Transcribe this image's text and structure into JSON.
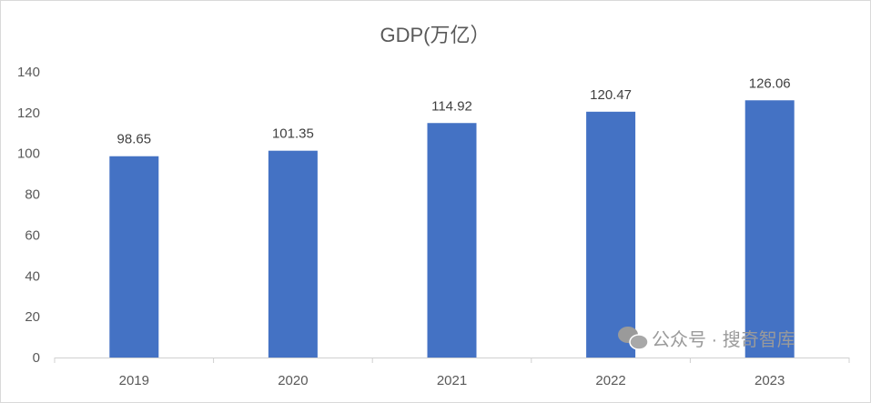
{
  "chart_data": {
    "type": "bar",
    "title": "GDP(万亿）",
    "categories": [
      "2019",
      "2020",
      "2021",
      "2022",
      "2023"
    ],
    "values": [
      98.65,
      101.35,
      114.92,
      120.47,
      126.06
    ],
    "data_labels": [
      "98.65",
      "101.35",
      "114.92",
      "120.47",
      "126.06"
    ],
    "xlabel": "",
    "ylabel": "",
    "ylim": [
      0,
      140
    ],
    "yticks": [
      0,
      20,
      40,
      60,
      80,
      100,
      120,
      140
    ],
    "grid": false,
    "legend": "none",
    "bar_color": "#4472c4"
  },
  "watermark": {
    "text": "公众号 · 搜奇智库",
    "icon": "wechat-icon"
  }
}
